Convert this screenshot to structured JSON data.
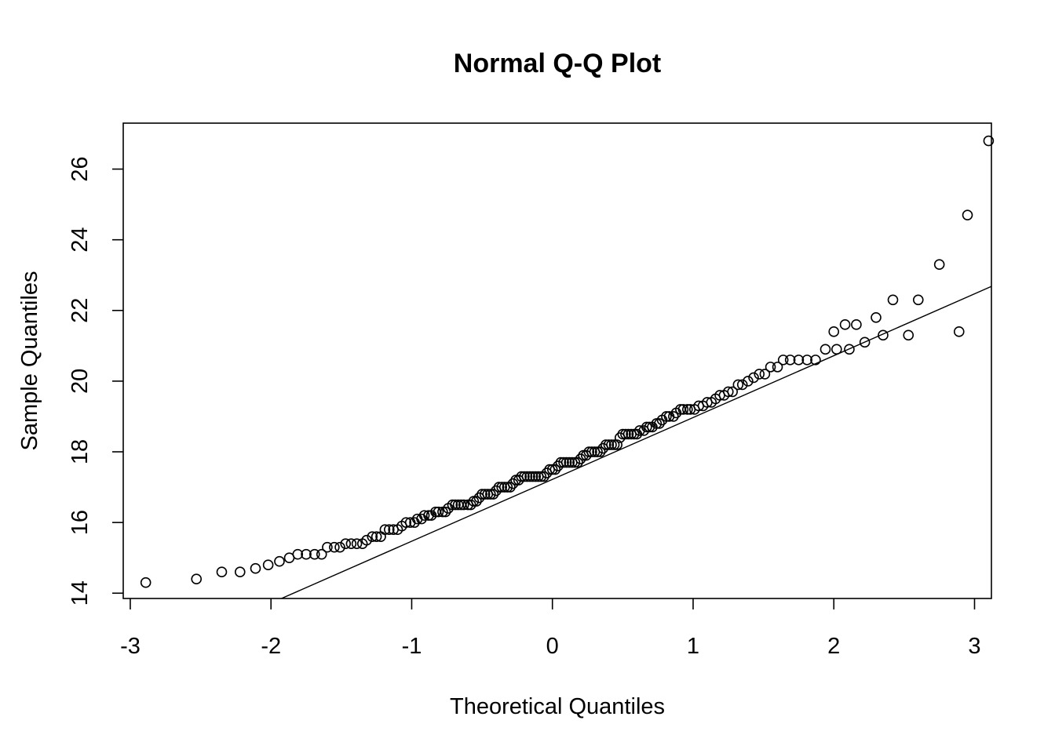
{
  "chart_data": {
    "type": "scatter",
    "title": "Normal Q-Q Plot",
    "xlabel": "Theoretical Quantiles",
    "ylabel": "Sample Quantiles",
    "xlim": [
      -3.05,
      3.12
    ],
    "ylim": [
      13.85,
      27.3
    ],
    "xticks": [
      -3,
      -2,
      -1,
      0,
      1,
      2,
      3
    ],
    "yticks": [
      14,
      16,
      18,
      20,
      22,
      24,
      26
    ],
    "grid": false,
    "reference_line": {
      "slope": 1.75,
      "intercept": 17.22
    },
    "points": [
      [
        -2.89,
        14.3
      ],
      [
        -2.53,
        14.4
      ],
      [
        -2.35,
        14.6
      ],
      [
        -2.22,
        14.6
      ],
      [
        -2.11,
        14.7
      ],
      [
        -2.02,
        14.8
      ],
      [
        -1.94,
        14.9
      ],
      [
        -1.87,
        15.0
      ],
      [
        -1.81,
        15.1
      ],
      [
        -1.75,
        15.1
      ],
      [
        -1.69,
        15.1
      ],
      [
        -1.64,
        15.1
      ],
      [
        -1.6,
        15.3
      ],
      [
        -1.55,
        15.3
      ],
      [
        -1.51,
        15.3
      ],
      [
        -1.47,
        15.4
      ],
      [
        -1.43,
        15.4
      ],
      [
        -1.39,
        15.4
      ],
      [
        -1.35,
        15.4
      ],
      [
        -1.32,
        15.5
      ],
      [
        -1.28,
        15.6
      ],
      [
        -1.25,
        15.6
      ],
      [
        -1.22,
        15.6
      ],
      [
        -1.19,
        15.8
      ],
      [
        -1.16,
        15.8
      ],
      [
        -1.13,
        15.8
      ],
      [
        -1.1,
        15.8
      ],
      [
        -1.07,
        15.9
      ],
      [
        -1.04,
        16.0
      ],
      [
        -1.01,
        16.0
      ],
      [
        -0.98,
        16.0
      ],
      [
        -0.96,
        16.1
      ],
      [
        -0.93,
        16.1
      ],
      [
        -0.91,
        16.2
      ],
      [
        -0.88,
        16.2
      ],
      [
        -0.86,
        16.2
      ],
      [
        -0.83,
        16.3
      ],
      [
        -0.81,
        16.3
      ],
      [
        -0.78,
        16.3
      ],
      [
        -0.76,
        16.3
      ],
      [
        -0.74,
        16.4
      ],
      [
        -0.71,
        16.5
      ],
      [
        -0.69,
        16.5
      ],
      [
        -0.67,
        16.5
      ],
      [
        -0.65,
        16.5
      ],
      [
        -0.63,
        16.5
      ],
      [
        -0.6,
        16.5
      ],
      [
        -0.58,
        16.5
      ],
      [
        -0.56,
        16.6
      ],
      [
        -0.54,
        16.6
      ],
      [
        -0.52,
        16.7
      ],
      [
        -0.5,
        16.8
      ],
      [
        -0.48,
        16.8
      ],
      [
        -0.46,
        16.8
      ],
      [
        -0.44,
        16.8
      ],
      [
        -0.42,
        16.8
      ],
      [
        -0.4,
        16.9
      ],
      [
        -0.38,
        17.0
      ],
      [
        -0.36,
        17.0
      ],
      [
        -0.34,
        17.0
      ],
      [
        -0.32,
        17.0
      ],
      [
        -0.3,
        17.0
      ],
      [
        -0.28,
        17.1
      ],
      [
        -0.26,
        17.2
      ],
      [
        -0.24,
        17.2
      ],
      [
        -0.22,
        17.3
      ],
      [
        -0.2,
        17.3
      ],
      [
        -0.18,
        17.3
      ],
      [
        -0.16,
        17.3
      ],
      [
        -0.14,
        17.3
      ],
      [
        -0.12,
        17.3
      ],
      [
        -0.1,
        17.3
      ],
      [
        -0.08,
        17.3
      ],
      [
        -0.06,
        17.3
      ],
      [
        -0.04,
        17.4
      ],
      [
        -0.02,
        17.5
      ],
      [
        0.0,
        17.5
      ],
      [
        0.02,
        17.5
      ],
      [
        0.04,
        17.6
      ],
      [
        0.06,
        17.7
      ],
      [
        0.08,
        17.7
      ],
      [
        0.1,
        17.7
      ],
      [
        0.12,
        17.7
      ],
      [
        0.14,
        17.7
      ],
      [
        0.16,
        17.7
      ],
      [
        0.18,
        17.7
      ],
      [
        0.2,
        17.8
      ],
      [
        0.22,
        17.9
      ],
      [
        0.24,
        17.9
      ],
      [
        0.26,
        18.0
      ],
      [
        0.28,
        18.0
      ],
      [
        0.3,
        18.0
      ],
      [
        0.32,
        18.0
      ],
      [
        0.34,
        18.0
      ],
      [
        0.36,
        18.1
      ],
      [
        0.38,
        18.2
      ],
      [
        0.4,
        18.2
      ],
      [
        0.42,
        18.2
      ],
      [
        0.44,
        18.2
      ],
      [
        0.46,
        18.2
      ],
      [
        0.48,
        18.4
      ],
      [
        0.5,
        18.5
      ],
      [
        0.52,
        18.5
      ],
      [
        0.54,
        18.5
      ],
      [
        0.56,
        18.5
      ],
      [
        0.58,
        18.5
      ],
      [
        0.6,
        18.5
      ],
      [
        0.62,
        18.6
      ],
      [
        0.65,
        18.6
      ],
      [
        0.67,
        18.7
      ],
      [
        0.69,
        18.7
      ],
      [
        0.71,
        18.7
      ],
      [
        0.74,
        18.8
      ],
      [
        0.76,
        18.8
      ],
      [
        0.78,
        18.9
      ],
      [
        0.81,
        19.0
      ],
      [
        0.83,
        19.0
      ],
      [
        0.86,
        19.0
      ],
      [
        0.88,
        19.1
      ],
      [
        0.91,
        19.2
      ],
      [
        0.93,
        19.2
      ],
      [
        0.96,
        19.2
      ],
      [
        0.98,
        19.2
      ],
      [
        1.01,
        19.2
      ],
      [
        1.04,
        19.3
      ],
      [
        1.07,
        19.3
      ],
      [
        1.1,
        19.4
      ],
      [
        1.13,
        19.4
      ],
      [
        1.16,
        19.5
      ],
      [
        1.19,
        19.6
      ],
      [
        1.22,
        19.6
      ],
      [
        1.25,
        19.7
      ],
      [
        1.28,
        19.7
      ],
      [
        1.32,
        19.9
      ],
      [
        1.35,
        19.9
      ],
      [
        1.39,
        20.0
      ],
      [
        1.43,
        20.1
      ],
      [
        1.47,
        20.2
      ],
      [
        1.51,
        20.2
      ],
      [
        1.55,
        20.4
      ],
      [
        1.6,
        20.4
      ],
      [
        1.64,
        20.6
      ],
      [
        1.69,
        20.6
      ],
      [
        1.75,
        20.6
      ],
      [
        1.81,
        20.6
      ],
      [
        1.87,
        20.6
      ],
      [
        1.94,
        20.9
      ],
      [
        2.02,
        20.9
      ],
      [
        2.11,
        20.9
      ],
      [
        2.22,
        21.1
      ],
      [
        2.35,
        21.3
      ],
      [
        2.53,
        21.3
      ],
      [
        2.89,
        21.4
      ],
      [
        2.0,
        21.4
      ],
      [
        2.08,
        21.6
      ],
      [
        2.16,
        21.6
      ],
      [
        2.3,
        21.8
      ],
      [
        2.42,
        22.3
      ],
      [
        2.6,
        22.3
      ],
      [
        2.75,
        23.3
      ],
      [
        2.95,
        24.7
      ],
      [
        3.1,
        26.8
      ]
    ]
  }
}
